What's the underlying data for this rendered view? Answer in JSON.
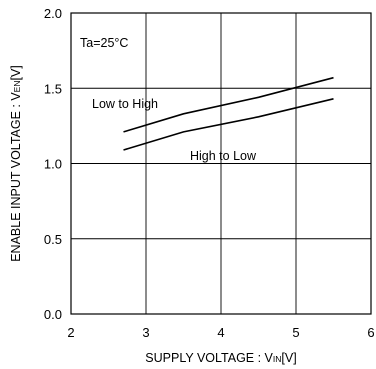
{
  "chart_data": {
    "type": "line",
    "condition": "Ta=25°C",
    "xlabel": {
      "main": "SUPPLY VOLTAGE : V",
      "sub": "IN",
      "unit": "[V]"
    },
    "ylabel": {
      "main": "ENABLE INPUT VOLTAGE : V",
      "sub": "EN",
      "unit": "[V]"
    },
    "xlim": [
      2,
      6
    ],
    "ylim": [
      0,
      2
    ],
    "x_ticks": [
      "2",
      "3",
      "4",
      "5",
      "6"
    ],
    "y_ticks": [
      "0.0",
      "0.5",
      "1.0",
      "1.5",
      "2.0"
    ],
    "grid": true,
    "series": [
      {
        "name": "Low to High",
        "x": [
          2.7,
          3.5,
          4.5,
          5.5
        ],
        "y": [
          1.21,
          1.33,
          1.44,
          1.57
        ]
      },
      {
        "name": "High to Low",
        "x": [
          2.7,
          3.5,
          4.5,
          5.5
        ],
        "y": [
          1.09,
          1.21,
          1.31,
          1.43
        ]
      }
    ]
  }
}
